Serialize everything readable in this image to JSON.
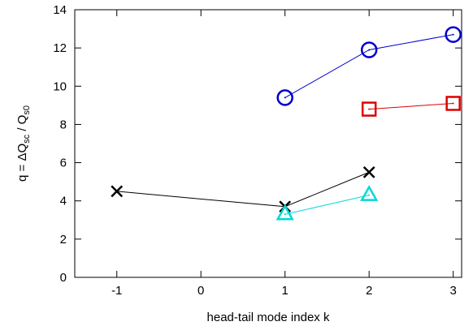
{
  "chart_data": {
    "type": "line",
    "title": "",
    "xlabel": "head-tail mode index k",
    "ylabel": {
      "main": "q = ΔQ",
      "sub1": "sc",
      "mid": " / Q",
      "sub2": "s0"
    },
    "xlim": [
      -1.5,
      3.1
    ],
    "ylim": [
      0,
      14
    ],
    "xticks": [
      -1,
      0,
      1,
      2,
      3
    ],
    "yticks": [
      0,
      2,
      4,
      6,
      8,
      10,
      12,
      14
    ],
    "grid": false,
    "legend": "none",
    "series": [
      {
        "marker": "circle",
        "color": "#0000cc",
        "x": [
          1,
          2,
          3
        ],
        "y": [
          9.4,
          11.9,
          12.7
        ]
      },
      {
        "marker": "square",
        "color": "#dd0000",
        "x": [
          2,
          3
        ],
        "y": [
          8.8,
          9.1
        ]
      },
      {
        "marker": "cross",
        "color": "#000000",
        "x": [
          -1,
          1,
          2
        ],
        "y": [
          4.5,
          3.7,
          5.5
        ]
      },
      {
        "marker": "triangle",
        "color": "#00d8d8",
        "x": [
          1,
          2
        ],
        "y": [
          3.3,
          4.3
        ]
      }
    ]
  }
}
